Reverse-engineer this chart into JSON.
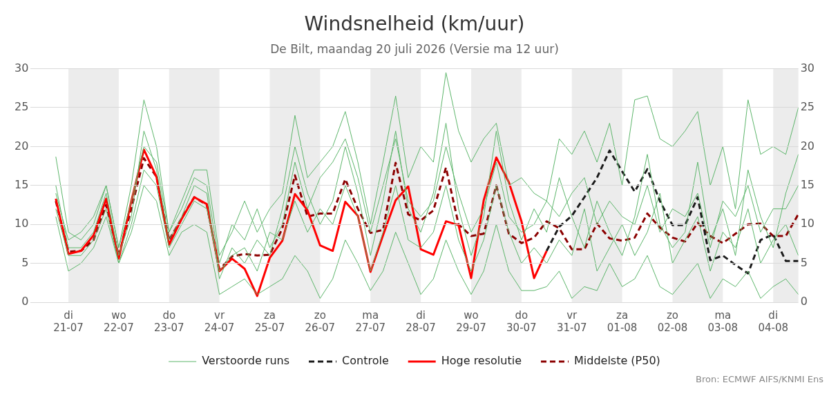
{
  "chart_data": {
    "type": "line",
    "title": "Windsnelheid (km/uur)",
    "subtitle": "De Bilt, maandag 20 juli 2026 (Versie ma 12 uur)",
    "x": [
      "2026-07-20T18:00",
      "2026-07-21T00:00",
      "2026-07-21T06:00",
      "2026-07-21T12:00",
      "2026-07-21T18:00",
      "2026-07-22T00:00",
      "2026-07-22T06:00",
      "2026-07-22T12:00",
      "2026-07-22T18:00",
      "2026-07-23T00:00",
      "2026-07-23T06:00",
      "2026-07-23T12:00",
      "2026-07-23T18:00",
      "2026-07-24T00:00",
      "2026-07-24T06:00",
      "2026-07-24T12:00",
      "2026-07-24T18:00",
      "2026-07-25T00:00",
      "2026-07-25T06:00",
      "2026-07-25T12:00",
      "2026-07-25T18:00",
      "2026-07-26T00:00",
      "2026-07-26T06:00",
      "2026-07-26T12:00",
      "2026-07-26T18:00",
      "2026-07-27T00:00",
      "2026-07-27T06:00",
      "2026-07-27T12:00",
      "2026-07-27T18:00",
      "2026-07-28T00:00",
      "2026-07-28T06:00",
      "2026-07-28T12:00",
      "2026-07-28T18:00",
      "2026-07-29T00:00",
      "2026-07-29T06:00",
      "2026-07-29T12:00",
      "2026-07-29T18:00",
      "2026-07-30T00:00",
      "2026-07-30T06:00",
      "2026-07-30T12:00",
      "2026-07-30T18:00",
      "2026-07-31T00:00",
      "2026-07-31T06:00",
      "2026-07-31T12:00",
      "2026-07-31T18:00",
      "2026-08-01T00:00",
      "2026-08-01T06:00",
      "2026-08-01T12:00",
      "2026-08-01T18:00",
      "2026-08-02T00:00",
      "2026-08-02T06:00",
      "2026-08-02T12:00",
      "2026-08-02T18:00",
      "2026-08-03T00:00",
      "2026-08-03T06:00",
      "2026-08-03T12:00",
      "2026-08-03T18:00",
      "2026-08-04T00:00",
      "2026-08-04T06:00",
      "2026-08-04T12:00"
    ],
    "series": [
      {
        "name": "Verstoorde runs",
        "color": "#5cb56a",
        "line_style": "solid",
        "values": [
          18.7,
          9,
          8,
          10,
          15,
          7,
          15,
          26,
          20,
          9,
          13,
          17,
          17,
          6,
          9,
          13,
          9,
          12,
          14,
          24,
          16,
          18,
          20,
          24.5,
          18,
          10,
          18,
          26.5,
          16,
          20,
          18,
          29.5,
          22,
          18,
          21,
          23,
          15,
          16,
          14,
          13,
          21,
          19,
          22,
          18,
          23,
          15,
          26,
          26.5,
          21,
          20,
          22,
          24.5,
          15,
          20,
          12,
          26,
          19,
          20,
          19,
          25
        ]
      },
      {
        "color": "#5cb56a",
        "line_style": "solid",
        "values": [
          11,
          4,
          5,
          7,
          11,
          5,
          9,
          15,
          13,
          6,
          9,
          10,
          9,
          1,
          2,
          3,
          1,
          2,
          3,
          6,
          4,
          0.5,
          3,
          8,
          5,
          1.5,
          4,
          9,
          5,
          1,
          3,
          8,
          4,
          1,
          4,
          10,
          4,
          1.5,
          1.5,
          2,
          4,
          0.5,
          2,
          1.5,
          5,
          2,
          3,
          6,
          2,
          1,
          3,
          5,
          0.5,
          3,
          2,
          4,
          0.5,
          2,
          3,
          1
        ]
      },
      {
        "color": "#5cb56a",
        "line_style": "solid",
        "values": [
          15,
          7,
          7,
          9,
          14,
          6,
          11,
          22,
          17,
          8,
          11,
          15,
          14,
          3,
          7,
          5,
          8,
          6,
          12,
          20,
          14,
          10,
          13,
          20,
          14,
          6,
          13,
          22,
          12,
          9,
          14,
          23,
          12,
          6,
          11,
          22,
          13,
          8,
          12,
          9,
          16,
          11,
          7,
          13,
          9,
          6,
          11,
          19,
          10,
          7,
          9,
          18,
          8,
          12,
          6,
          17,
          11,
          7,
          14,
          19
        ]
      },
      {
        "color": "#5cb56a",
        "line_style": "solid",
        "values": [
          12,
          6,
          6,
          8,
          12,
          5,
          10,
          17,
          15,
          7,
          10,
          13,
          12,
          4,
          6,
          7,
          4,
          9,
          8,
          13,
          9,
          12,
          10,
          15,
          11,
          4,
          9,
          15,
          8,
          7,
          9,
          15,
          8,
          4,
          8,
          15,
          9,
          5,
          7,
          5,
          8,
          6,
          12,
          4,
          7,
          10,
          6,
          9,
          14,
          5,
          8,
          11,
          4,
          9,
          7,
          12,
          5,
          8,
          10,
          6
        ]
      },
      {
        "color": "#5cb56a",
        "line_style": "solid",
        "values": [
          14,
          8,
          9,
          11,
          15,
          7,
          13,
          20,
          18,
          9,
          12,
          16,
          15,
          5,
          10,
          8,
          12,
          7,
          10,
          18,
          12,
          16,
          18,
          21,
          16,
          9,
          15,
          21,
          13,
          11,
          13,
          20,
          14,
          9,
          12,
          18,
          11,
          9,
          10,
          13,
          11,
          14,
          16,
          10,
          13,
          11,
          10,
          15,
          9,
          12,
          11,
          14,
          7,
          13,
          11,
          15,
          9,
          12,
          12,
          15
        ]
      },
      {
        "name": "Controle",
        "color": "#1a1a1a",
        "line_style": "dashed",
        "values": [
          null,
          null,
          null,
          null,
          null,
          null,
          null,
          null,
          null,
          null,
          null,
          null,
          null,
          null,
          null,
          null,
          null,
          null,
          null,
          null,
          null,
          null,
          null,
          null,
          null,
          null,
          null,
          null,
          null,
          null,
          null,
          null,
          null,
          null,
          null,
          null,
          null,
          null,
          null,
          6.6,
          9.7,
          11.1,
          13.5,
          16,
          19.5,
          16.8,
          14.2,
          17.1,
          13,
          9.9,
          9.9,
          13.5,
          5.4,
          6,
          4.8,
          3.7,
          8,
          8.7,
          5.3,
          5.3
        ]
      },
      {
        "name": "Hoge resolutie",
        "color": "#ff0000",
        "line_style": "solid",
        "values": [
          13.3,
          6.2,
          6.6,
          8.6,
          13.3,
          5.6,
          13,
          19.6,
          16.1,
          7.4,
          10.7,
          13.5,
          12.6,
          4.0,
          5.6,
          4.3,
          0.8,
          5.7,
          7.9,
          13.9,
          11.8,
          7.3,
          6.6,
          12.9,
          11.1,
          3.9,
          8.6,
          13.1,
          14.9,
          6.8,
          6.1,
          10.4,
          9.9,
          3.1,
          13.1,
          18.6,
          15.4,
          10.4,
          3.1,
          6.6,
          null,
          null,
          null,
          null,
          null,
          null,
          null,
          null,
          null,
          null,
          null,
          null,
          null,
          null,
          null,
          null,
          null,
          null,
          null,
          null
        ]
      },
      {
        "name": "Middelste (P50)",
        "color": "#8b0000",
        "line_style": "dashed",
        "values": [
          13.0,
          6.5,
          6.6,
          8.0,
          12.5,
          6.0,
          12,
          18.5,
          16.1,
          8.0,
          10.8,
          13.5,
          12.5,
          4.2,
          5.9,
          6.2,
          6.0,
          6.1,
          9.5,
          16.3,
          11.0,
          11.4,
          11.4,
          15.8,
          12,
          8.9,
          9.3,
          17.9,
          11.3,
          10.5,
          11.8,
          17.3,
          10.0,
          8.5,
          8.8,
          15,
          8.8,
          7.6,
          8.3,
          10.4,
          9.5,
          6.8,
          6.8,
          10.1,
          8.2,
          7.9,
          8.3,
          11.4,
          9.6,
          8.3,
          7.8,
          10.2,
          8.5,
          7.6,
          8.8,
          10,
          10.1,
          8.5,
          8.5,
          11.3
        ]
      }
    ],
    "xlim": [
      "2026-07-20T06:00",
      "2026-08-04T12:00"
    ],
    "xticks": [
      {
        "value": "2026-07-21",
        "label": "di 21-07"
      },
      {
        "value": "2026-07-22",
        "label": "wo 22-07"
      },
      {
        "value": "2026-07-23",
        "label": "do 23-07"
      },
      {
        "value": "2026-07-24",
        "label": "vr 24-07"
      },
      {
        "value": "2026-07-25",
        "label": "za 25-07"
      },
      {
        "value": "2026-07-26",
        "label": "zo 26-07"
      },
      {
        "value": "2026-07-27",
        "label": "ma 27-07"
      },
      {
        "value": "2026-07-28",
        "label": "di 28-07"
      },
      {
        "value": "2026-07-29",
        "label": "wo 29-07"
      },
      {
        "value": "2026-07-30",
        "label": "do 30-07"
      },
      {
        "value": "2026-07-31",
        "label": "vr 31-07"
      },
      {
        "value": "2026-08-01",
        "label": "za 01-08"
      },
      {
        "value": "2026-08-02",
        "label": "zo 02-08"
      },
      {
        "value": "2026-08-03",
        "label": "ma 03-08"
      },
      {
        "value": "2026-08-04",
        "label": "di 04-08"
      }
    ],
    "ylim": [
      0,
      30
    ],
    "yticks": [
      0,
      5,
      10,
      15,
      20,
      25,
      30
    ],
    "y2lim": [
      0,
      30
    ],
    "y2ticks": [
      0,
      5,
      10,
      15,
      20,
      25,
      30
    ],
    "bands": [
      {
        "axis": "x",
        "from": "2026-07-21",
        "to": "2026-07-22",
        "color": "#ececec"
      },
      {
        "axis": "x",
        "from": "2026-07-23",
        "to": "2026-07-24",
        "color": "#ececec"
      },
      {
        "axis": "x",
        "from": "2026-07-25",
        "to": "2026-07-26",
        "color": "#ececec"
      },
      {
        "axis": "x",
        "from": "2026-07-27",
        "to": "2026-07-28",
        "color": "#ececec"
      },
      {
        "axis": "x",
        "from": "2026-07-29",
        "to": "2026-07-30",
        "color": "#ececec"
      },
      {
        "axis": "x",
        "from": "2026-07-31",
        "to": "2026-08-01",
        "color": "#ececec"
      },
      {
        "axis": "x",
        "from": "2026-08-02",
        "to": "2026-08-03",
        "color": "#ececec"
      },
      {
        "axis": "x",
        "from": "2026-08-04",
        "to": "2026-08-05",
        "color": "#ececec"
      }
    ],
    "grid": "y",
    "legend": "bottom",
    "marker": "none",
    "annotations": [
      "Bron: ECMWF AIFS/KNMI Ens"
    ]
  }
}
